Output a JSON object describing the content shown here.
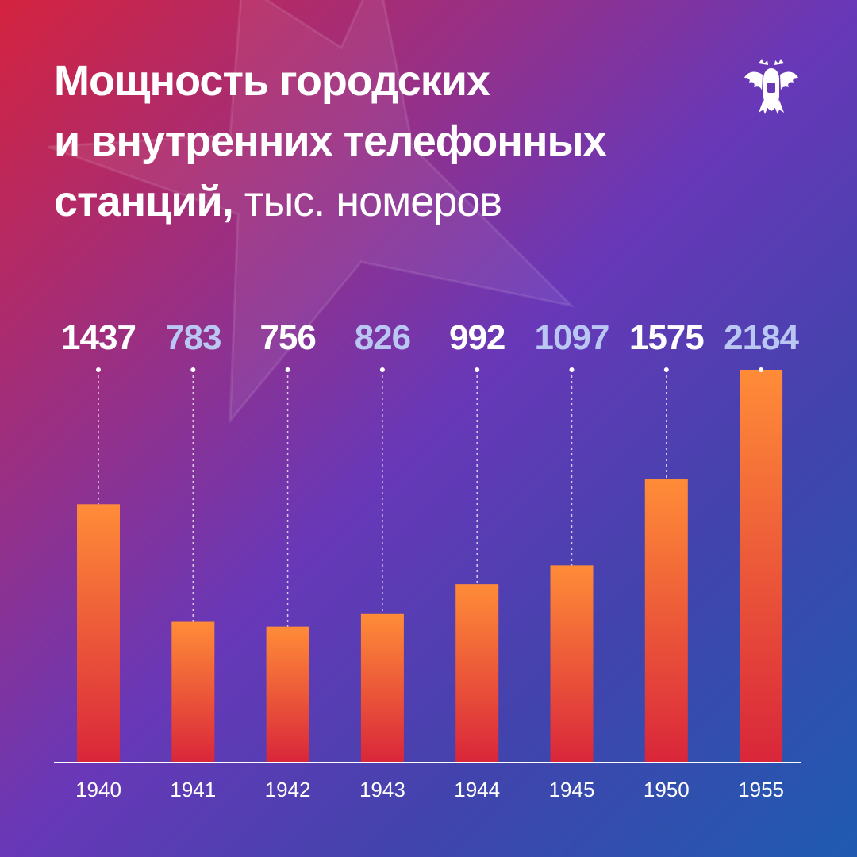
{
  "title": {
    "line1": "Мощность городских",
    "line2": "и внутренних телефонных",
    "line3_bold": "станций,",
    "line3_unit": "тыс. номеров"
  },
  "colors": {
    "bar_top": "#ff8c38",
    "bar_bottom": "#d9263a",
    "label_white": "#ffffff",
    "label_light": "#b9c7f2",
    "axis": "#ffffff"
  },
  "chart_data": {
    "type": "bar",
    "categories": [
      "1940",
      "1941",
      "1942",
      "1943",
      "1944",
      "1945",
      "1950",
      "1955"
    ],
    "values": [
      1437,
      783,
      756,
      826,
      992,
      1097,
      1575,
      2184
    ],
    "ylim": [
      0,
      2184
    ],
    "grid": false,
    "label_style": [
      "white",
      "light",
      "white",
      "light",
      "white",
      "light",
      "white",
      "light"
    ]
  }
}
